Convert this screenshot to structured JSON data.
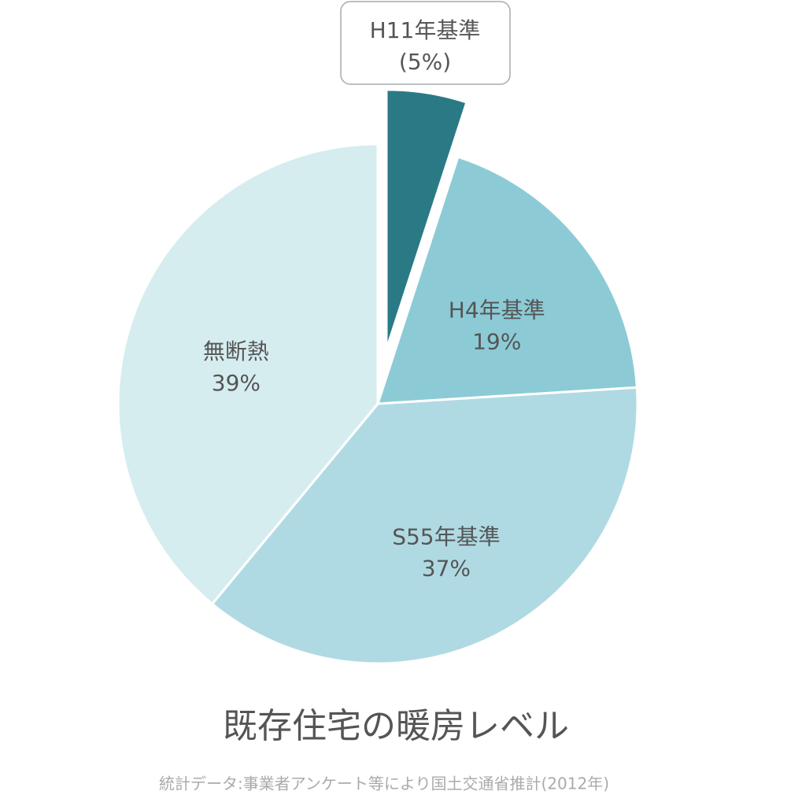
{
  "chart_data": {
    "type": "pie",
    "title": "既存住宅の暖房レベル",
    "source": "統計データ:事業者アンケート等により国土交通省推計(2012年)",
    "categories": [
      "H11年基準",
      "H4年基準",
      "S55年基準",
      "無断熱"
    ],
    "values": [
      5,
      19,
      37,
      39
    ],
    "value_labels": [
      "(5%)",
      "19%",
      "37%",
      "39%"
    ],
    "colors": [
      "#2a7a86",
      "#8ccbd6",
      "#b0dae3",
      "#d6edf0"
    ]
  }
}
